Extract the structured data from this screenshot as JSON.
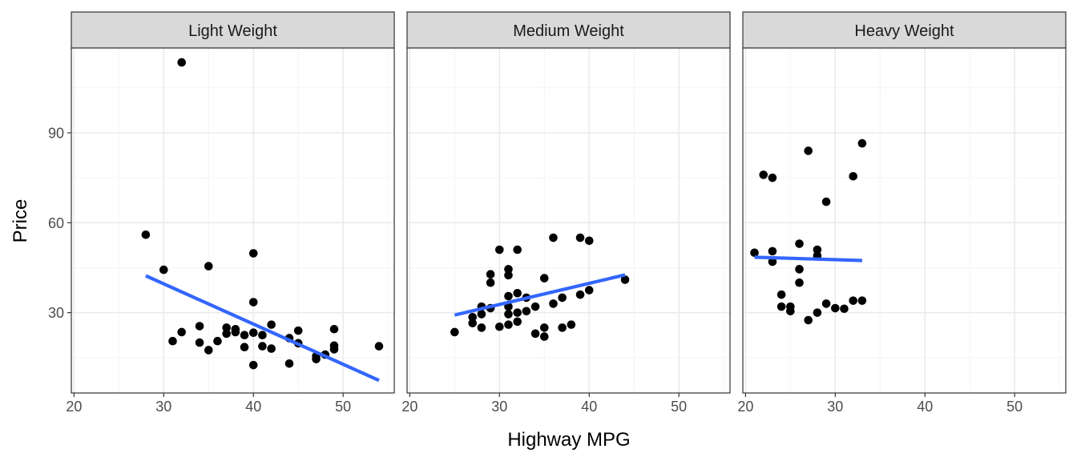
{
  "chart_data": {
    "type": "scatter",
    "xlabel": "Highway MPG",
    "ylabel": "Price",
    "xlim": [
      19.7,
      55.7
    ],
    "ylim": [
      3.2,
      118.3
    ],
    "x_ticks": [
      20,
      30,
      40,
      50
    ],
    "y_ticks": [
      30,
      60,
      90
    ],
    "grid": true,
    "facets": [
      {
        "label": "Light Weight",
        "points": [
          [
            32,
            113.5
          ],
          [
            28,
            56.0
          ],
          [
            30,
            44.3
          ],
          [
            35,
            45.5
          ],
          [
            40,
            49.8
          ],
          [
            40,
            33.5
          ],
          [
            31,
            20.5
          ],
          [
            32,
            23.5
          ],
          [
            34,
            25.5
          ],
          [
            34,
            20.0
          ],
          [
            35,
            17.5
          ],
          [
            36,
            20.5
          ],
          [
            37,
            25.0
          ],
          [
            37,
            23.0
          ],
          [
            38,
            24.5
          ],
          [
            38,
            23.5
          ],
          [
            39,
            22.5
          ],
          [
            39,
            18.5
          ],
          [
            40,
            23.3
          ],
          [
            40,
            12.5
          ],
          [
            41,
            22.5
          ],
          [
            41,
            18.8
          ],
          [
            42,
            26.0
          ],
          [
            42,
            18.0
          ],
          [
            44,
            21.5
          ],
          [
            44,
            13.0
          ],
          [
            45,
            24.0
          ],
          [
            45,
            19.8
          ],
          [
            47,
            14.5
          ],
          [
            47,
            15.5
          ],
          [
            48,
            16.0
          ],
          [
            49,
            24.5
          ],
          [
            49,
            19.0
          ],
          [
            49,
            17.8
          ],
          [
            54,
            18.8
          ]
        ],
        "fit": {
          "x": [
            28,
            54
          ],
          "y": [
            42.3,
            7.4
          ]
        }
      },
      {
        "label": "Medium Weight",
        "points": [
          [
            25,
            23.5
          ],
          [
            27,
            28.5
          ],
          [
            27,
            26.5
          ],
          [
            28,
            32.0
          ],
          [
            28,
            29.5
          ],
          [
            28,
            25.0
          ],
          [
            29,
            42.8
          ],
          [
            29,
            40.0
          ],
          [
            29,
            31.5
          ],
          [
            30,
            51.0
          ],
          [
            30,
            25.3
          ],
          [
            31,
            44.5
          ],
          [
            31,
            42.5
          ],
          [
            31,
            35.5
          ],
          [
            31,
            32.0
          ],
          [
            31,
            29.5
          ],
          [
            31,
            26.0
          ],
          [
            32,
            51.0
          ],
          [
            32,
            36.5
          ],
          [
            32,
            30.0
          ],
          [
            32,
            27.0
          ],
          [
            33,
            35.0
          ],
          [
            33,
            30.5
          ],
          [
            34,
            32.0
          ],
          [
            34,
            23.0
          ],
          [
            35,
            41.5
          ],
          [
            35,
            25.0
          ],
          [
            35,
            22.0
          ],
          [
            36,
            55.0
          ],
          [
            36,
            33.0
          ],
          [
            37,
            35.0
          ],
          [
            37,
            25.0
          ],
          [
            38,
            26.0
          ],
          [
            39,
            55.0
          ],
          [
            39,
            36.0
          ],
          [
            40,
            54.0
          ],
          [
            40,
            37.5
          ],
          [
            44,
            41.0
          ]
        ],
        "fit": {
          "x": [
            25,
            44
          ],
          "y": [
            29.2,
            42.6
          ]
        }
      },
      {
        "label": "Heavy Weight",
        "points": [
          [
            21,
            50.0
          ],
          [
            22,
            76.0
          ],
          [
            23,
            75.0
          ],
          [
            23,
            50.5
          ],
          [
            23,
            47.0
          ],
          [
            24,
            36.0
          ],
          [
            24,
            32.0
          ],
          [
            25,
            32.0
          ],
          [
            25,
            30.5
          ],
          [
            26,
            53.0
          ],
          [
            26,
            44.5
          ],
          [
            26,
            40.0
          ],
          [
            27,
            84.0
          ],
          [
            27,
            27.5
          ],
          [
            28,
            51.0
          ],
          [
            28,
            49.0
          ],
          [
            28,
            30.0
          ],
          [
            29,
            67.0
          ],
          [
            29,
            33.0
          ],
          [
            30,
            31.5
          ],
          [
            31,
            31.3
          ],
          [
            32,
            75.5
          ],
          [
            32,
            34.0
          ],
          [
            33,
            86.5
          ],
          [
            33,
            34.0
          ]
        ],
        "fit": {
          "x": [
            21,
            33
          ],
          "y": [
            48.5,
            47.4
          ]
        }
      }
    ]
  },
  "colors": {
    "panel_bg": "#ffffff",
    "panel_border": "#333333",
    "strip_bg": "#d9d9d9",
    "grid_major": "#ebebeb",
    "grid_minor": "#f4f4f4",
    "point": "#000000",
    "fit_line": "#3366ff",
    "tick_text": "#4d4d4d"
  }
}
